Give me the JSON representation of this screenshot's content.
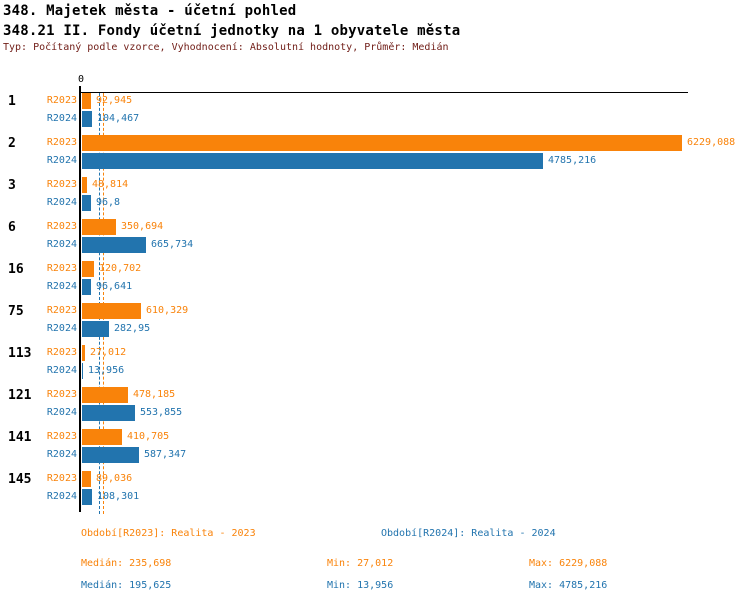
{
  "header": {
    "title_line1": "348. Majetek města - účetní pohled",
    "title_line2": "348.21 II. Fondy účetní jednotky na 1 obyvatele města",
    "meta": "Typ: Počítaný podle vzorce, Vyhodnocení: Absolutní hodnoty, Průměr: Medián"
  },
  "chart_data": {
    "type": "bar",
    "orientation": "horizontal",
    "grid": false,
    "zero_label": "0",
    "xlim": [
      0,
      6229.088
    ],
    "categories": [
      "1",
      "2",
      "3",
      "6",
      "16",
      "75",
      "113",
      "121",
      "141",
      "145"
    ],
    "series": [
      {
        "name": "R2023",
        "color": "#f9830a",
        "values": [
          92.945,
          6229.088,
          48.814,
          350.694,
          120.702,
          610.329,
          27.012,
          478.185,
          410.705,
          89.036
        ],
        "labels": [
          "92,945",
          "6229,088",
          "48,814",
          "350,694",
          "120,702",
          "610,329",
          "27,012",
          "478,185",
          "410,705",
          "89,036"
        ],
        "median": 235.698
      },
      {
        "name": "R2024",
        "color": "#2274ae",
        "values": [
          104.467,
          4785.216,
          96.8,
          665.734,
          96.641,
          282.95,
          13.956,
          553.855,
          587.347,
          108.301
        ],
        "labels": [
          "104,467",
          "4785,216",
          "96,8",
          "665,734",
          "96,641",
          "282,95",
          "13,956",
          "553,855",
          "587,347",
          "108,301"
        ],
        "median": 195.625
      }
    ],
    "median_lines_shown": true
  },
  "footer": {
    "legend_2023": "Období[R2023]: Realita - 2023",
    "legend_2024": "Období[R2024]: Realita - 2024",
    "stats_2023": {
      "median": "Medián: 235,698",
      "min": "Min: 27,012",
      "max": "Max: 6229,088"
    },
    "stats_2024": {
      "median": "Medián: 195,625",
      "min": "Min: 13,956",
      "max": "Max: 4785,216"
    }
  },
  "colors": {
    "bar_2023": "#f9830a",
    "bar_2024": "#2274ae",
    "meta_text": "#72201a",
    "axis": "#000000",
    "background": "#ffffff"
  }
}
